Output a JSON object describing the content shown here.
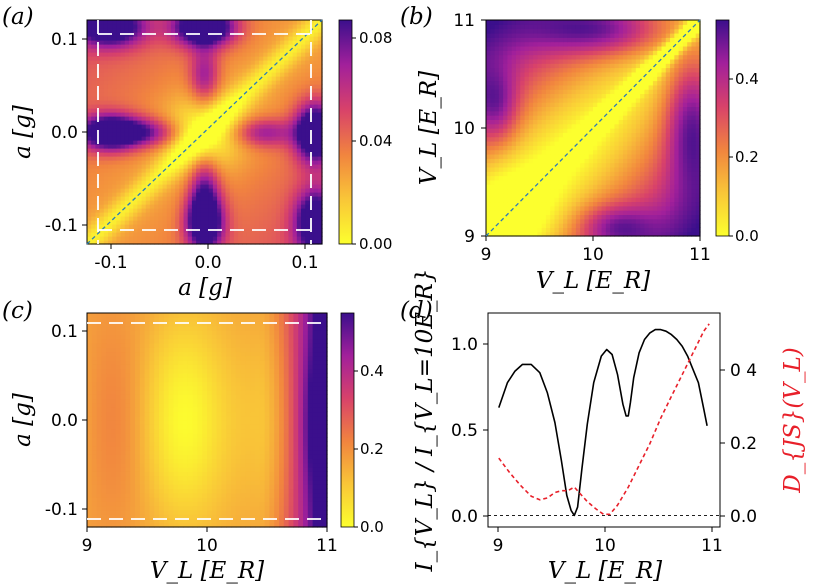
{
  "colors": {
    "heatmap_scale": [
      "#fcff2e",
      "#f9c638",
      "#f1843f",
      "#d8426a",
      "#a2209b",
      "#3b0f8c"
    ],
    "intensity_line": "#000000",
    "djs_line": "#e8202a",
    "diagonal": "#2b7bb9",
    "dashed_box": "#ffffff"
  },
  "chart_data": [
    {
      "panel": "(a)",
      "type": "heatmap",
      "xlabel": "a [g]",
      "ylabel": "a [g]",
      "xlim": [
        -0.12,
        0.12
      ],
      "ylim": [
        -0.12,
        0.12
      ],
      "xticks": [
        "-0.1",
        "0.0",
        "0.1"
      ],
      "yticks": [
        "-0.1",
        "0.0",
        "0.1"
      ],
      "colorbar": {
        "min": 0.0,
        "max": 0.087,
        "ticks": [
          "0.00",
          "0.04",
          "0.08"
        ]
      },
      "diagonal_line": true,
      "dashed_box": [
        -0.11,
        0.11
      ]
    },
    {
      "panel": "(b)",
      "type": "heatmap",
      "xlabel": "V_L [E_R]",
      "ylabel": "V_L [E_R]",
      "xlim": [
        9,
        11
      ],
      "ylim": [
        9,
        11
      ],
      "xticks": [
        "9",
        "10",
        "11"
      ],
      "yticks": [
        "9",
        "10",
        "11"
      ],
      "colorbar": {
        "min": 0.0,
        "max": 0.53,
        "ticks": [
          "0.0",
          "0.2",
          "0.4"
        ]
      },
      "diagonal_line": true
    },
    {
      "panel": "(c)",
      "type": "heatmap",
      "xlabel": "V_L [E_R]",
      "ylabel": "a [g]",
      "xlim": [
        9,
        11
      ],
      "ylim": [
        -0.12,
        0.12
      ],
      "xticks": [
        "9",
        "10",
        "11"
      ],
      "yticks": [
        "-0.1",
        "0.0",
        "0.1"
      ],
      "colorbar": {
        "min": 0.0,
        "max": 0.53,
        "ticks": [
          "0.0",
          "0.2",
          "0.4"
        ]
      },
      "dashed_lines_y": [
        -0.11,
        0.11
      ]
    },
    {
      "panel": "(d)",
      "type": "line",
      "xlabel": "V_L [E_R]",
      "ylabel_left": "I_{V_L} / I_{V_L=10E_R}",
      "ylabel_right": "D_{JS}(V_L)",
      "xlim": [
        8.9,
        11.05
      ],
      "ylim_left": [
        -0.07,
        1.22
      ],
      "ylim_right": [
        -0.03,
        0.56
      ],
      "xticks": [
        "9",
        "10",
        "11"
      ],
      "yticks_left": [
        "0.0",
        "0.5",
        "1.0"
      ],
      "yticks_right": [
        "0.0",
        "0.2",
        "0 4"
      ],
      "reference_line_y": 0.0,
      "series": [
        {
          "axis": "left",
          "style": "solid",
          "x": [
            9.0,
            9.08,
            9.15,
            9.22,
            9.3,
            9.38,
            9.45,
            9.52,
            9.58,
            9.63,
            9.67,
            9.7,
            9.73,
            9.77,
            9.82,
            9.88,
            9.95,
            10.0,
            10.05,
            10.1,
            10.15,
            10.18,
            10.2,
            10.22,
            10.25,
            10.3,
            10.35,
            10.4,
            10.45,
            10.5,
            10.55,
            10.6,
            10.65,
            10.7,
            10.75,
            10.8,
            10.85,
            10.9,
            10.93
          ],
          "y": [
            0.65,
            0.8,
            0.87,
            0.91,
            0.91,
            0.86,
            0.74,
            0.56,
            0.33,
            0.12,
            0.03,
            0.0,
            0.05,
            0.28,
            0.55,
            0.8,
            0.96,
            1.0,
            0.97,
            0.85,
            0.67,
            0.6,
            0.6,
            0.68,
            0.83,
            0.98,
            1.06,
            1.1,
            1.12,
            1.12,
            1.11,
            1.09,
            1.06,
            1.02,
            0.96,
            0.88,
            0.8,
            0.64,
            0.54
          ]
        },
        {
          "axis": "right",
          "style": "dashed",
          "x": [
            9.0,
            9.1,
            9.2,
            9.3,
            9.38,
            9.45,
            9.52,
            9.58,
            9.64,
            9.7,
            9.76,
            9.82,
            9.9,
            9.97,
            10.03,
            10.1,
            10.2,
            10.3,
            10.4,
            10.5,
            10.6,
            10.7,
            10.8,
            10.9,
            10.95
          ],
          "y": [
            0.16,
            0.12,
            0.085,
            0.055,
            0.045,
            0.05,
            0.065,
            0.07,
            0.07,
            0.08,
            0.06,
            0.04,
            0.02,
            0.005,
            0.005,
            0.03,
            0.08,
            0.14,
            0.2,
            0.27,
            0.33,
            0.39,
            0.45,
            0.51,
            0.53
          ]
        }
      ]
    }
  ]
}
